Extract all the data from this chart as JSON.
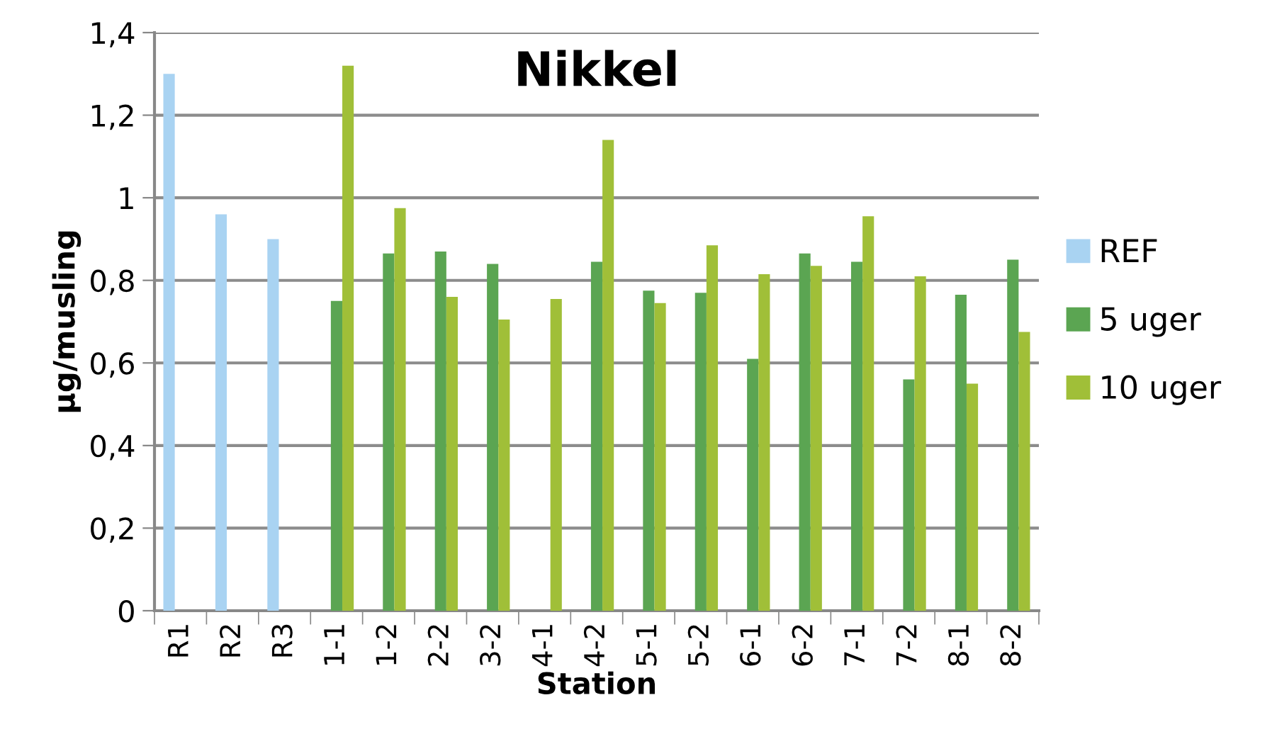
{
  "chart_data": {
    "type": "bar",
    "title": "Nikkel",
    "xlabel": "Station",
    "ylabel": "µg/musling",
    "categories": [
      "R1",
      "R2",
      "R3",
      "1-1",
      "1-2",
      "2-2",
      "3-2",
      "4-1",
      "4-2",
      "5-1",
      "5-2",
      "6-1",
      "6-2",
      "7-1",
      "7-2",
      "8-1",
      "8-2"
    ],
    "series": [
      {
        "name": "REF",
        "color": "#a9d3f2",
        "values": [
          1.3,
          0.96,
          0.9,
          null,
          null,
          null,
          null,
          null,
          null,
          null,
          null,
          null,
          null,
          null,
          null,
          null,
          null
        ]
      },
      {
        "name": "5 uger",
        "color": "#5ba552",
        "values": [
          null,
          null,
          null,
          0.75,
          0.865,
          0.87,
          0.84,
          null,
          0.845,
          0.775,
          0.77,
          0.61,
          0.865,
          0.845,
          0.56,
          0.765,
          0.85
        ]
      },
      {
        "name": "10 uger",
        "color": "#a0bf38",
        "values": [
          null,
          null,
          null,
          1.32,
          0.975,
          0.76,
          0.705,
          0.755,
          1.14,
          0.745,
          0.885,
          0.815,
          0.835,
          0.955,
          0.81,
          0.55,
          0.675
        ]
      }
    ],
    "ylim": [
      0,
      1.4
    ],
    "yticks": [
      0,
      {
        "value": 0.2,
        "label": "0,2"
      },
      {
        "value": 0.4,
        "label": "0,4"
      },
      {
        "value": 0.6,
        "label": "0,6"
      },
      {
        "value": 0.8,
        "label": "0,8"
      },
      1,
      {
        "value": 1.2,
        "label": "1,2"
      },
      {
        "value": 1.4,
        "label": "1,4"
      }
    ],
    "grid": "y",
    "legend": "right"
  }
}
